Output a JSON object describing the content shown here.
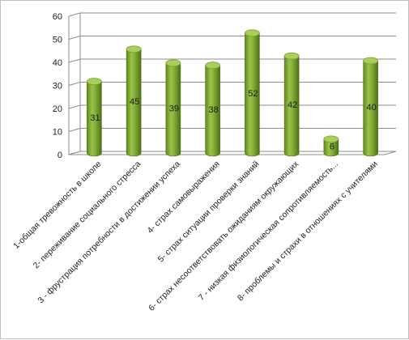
{
  "chart_data": {
    "type": "bar",
    "title": "",
    "xlabel": "",
    "ylabel": "",
    "ylim": [
      0,
      60
    ],
    "yticks": [
      0,
      10,
      20,
      30,
      40,
      50,
      60
    ],
    "grid": true,
    "legend": "none",
    "categories": [
      "1-общая тревожность в школе",
      "2- переживание социального стресса",
      "3 - фрустрация потребности в достижении успеха",
      "4- страх самовыражения",
      "5- страх ситуации проверки знаний",
      "6- страх несоответствовать ожиданиям окружающих",
      "7 - низкая физиологическая сопротивляемость...",
      "8- проблемы и страхи в отношениях с учителями"
    ],
    "values": [
      31,
      45,
      39,
      38,
      52,
      42,
      6,
      40
    ],
    "colors": {
      "bar_light": "#9bc24a",
      "bar_mid": "#76a02c",
      "bar_dark": "#4e7114",
      "bar_top": "#a9ce5a",
      "grid": "#8c8c8c"
    }
  }
}
